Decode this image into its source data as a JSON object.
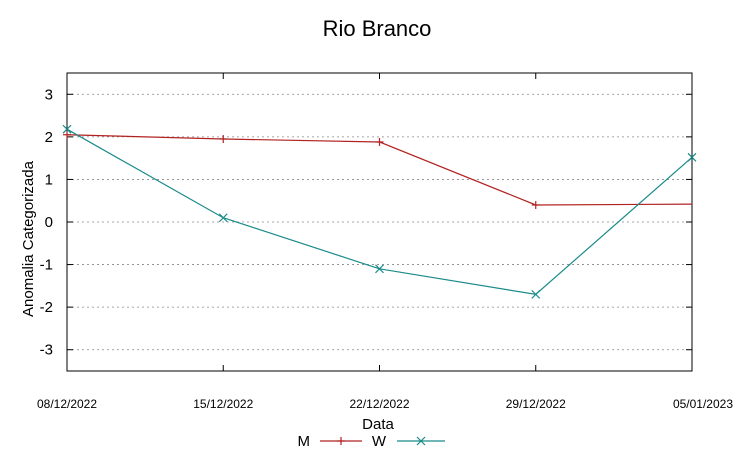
{
  "chart_data": {
    "type": "line",
    "title": "Rio Branco",
    "xlabel": "Data",
    "ylabel": "Anomalia Categorizada",
    "categories": [
      "08/12/2022",
      "15/12/2022",
      "22/12/2022",
      "29/12/2022",
      "05/01/2023"
    ],
    "y_ticks": [
      "3",
      "2",
      "1",
      "0",
      "-1",
      "-2",
      "-3"
    ],
    "ylim": [
      -3.5,
      3.5
    ],
    "grid": "horizontal dotted",
    "legend_position": "bottom",
    "series": [
      {
        "name": "M",
        "color": "#b22222",
        "marker": "plus",
        "values": [
          2.05,
          1.95,
          1.88,
          0.4,
          0.42
        ],
        "marker_indices": [
          0,
          1,
          2,
          3
        ]
      },
      {
        "name": "W",
        "color": "#1a8a8a",
        "marker": "x",
        "values": [
          2.18,
          0.1,
          -1.1,
          -1.7,
          1.52
        ],
        "marker_indices": [
          0,
          1,
          2,
          3,
          4
        ]
      }
    ]
  }
}
